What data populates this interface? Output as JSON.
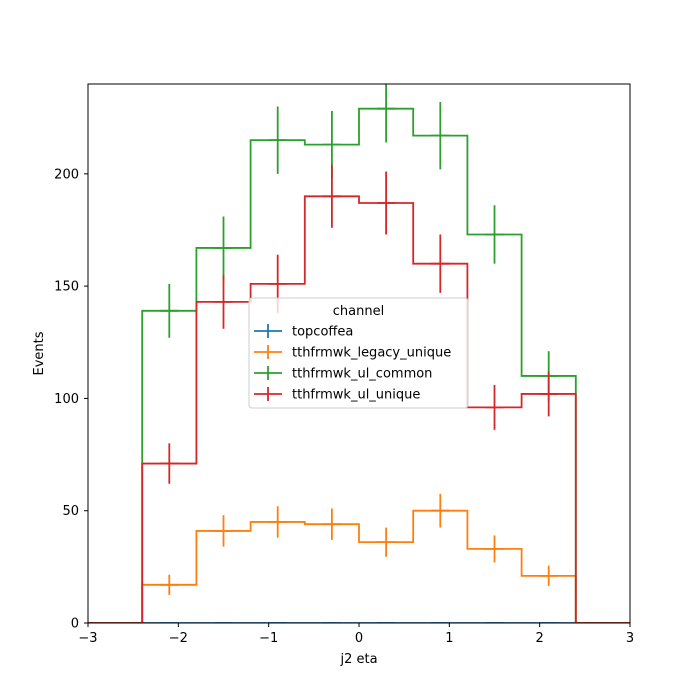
{
  "chart_data": {
    "type": "step_histogram",
    "title": "",
    "xlabel": "j2 eta",
    "ylabel": "Events",
    "xlim": [
      -3,
      3
    ],
    "ylim": [
      0,
      240
    ],
    "x_ticks": [
      -3,
      -2,
      -1,
      0,
      1,
      2,
      3
    ],
    "x_tick_labels": [
      "−3",
      "−2",
      "−1",
      "0",
      "1",
      "2",
      "3"
    ],
    "y_ticks": [
      0,
      50,
      100,
      150,
      200
    ],
    "y_tick_labels": [
      "0",
      "50",
      "100",
      "150",
      "200"
    ],
    "bin_edges": [
      -3.0,
      -2.4,
      -1.8,
      -1.2,
      -0.6,
      0.0,
      0.6,
      1.2,
      1.8,
      2.4,
      3.0
    ],
    "legend": {
      "title": "channel",
      "placement": "center"
    },
    "series": [
      {
        "name": "topcoffea",
        "color": "#1f77b4",
        "values": [
          0,
          0,
          0,
          0,
          0,
          0,
          0,
          0,
          0,
          0
        ],
        "errors": [
          0,
          0,
          0,
          0,
          0,
          0,
          0,
          0,
          0,
          0
        ]
      },
      {
        "name": "tthfrmwk_legacy_unique",
        "color": "#ff7f0e",
        "values": [
          0,
          17,
          41,
          45,
          44,
          36,
          50,
          33,
          21,
          0
        ],
        "errors": [
          0,
          4.5,
          7,
          7,
          7,
          6.5,
          7.5,
          6,
          4.5,
          0
        ]
      },
      {
        "name": "tthfrmwk_ul_common",
        "color": "#2ca02c",
        "values": [
          0,
          139,
          167,
          215,
          213,
          229,
          217,
          173,
          110,
          0
        ],
        "errors": [
          0,
          12,
          14,
          15,
          15,
          15,
          15,
          13,
          11,
          0
        ]
      },
      {
        "name": "tthfrmwk_ul_unique",
        "color": "#d62728",
        "values": [
          0,
          71,
          143,
          151,
          190,
          187,
          160,
          96,
          102,
          0
        ],
        "errors": [
          0,
          9,
          12,
          13,
          14,
          14,
          13,
          10,
          10,
          0
        ]
      }
    ]
  }
}
